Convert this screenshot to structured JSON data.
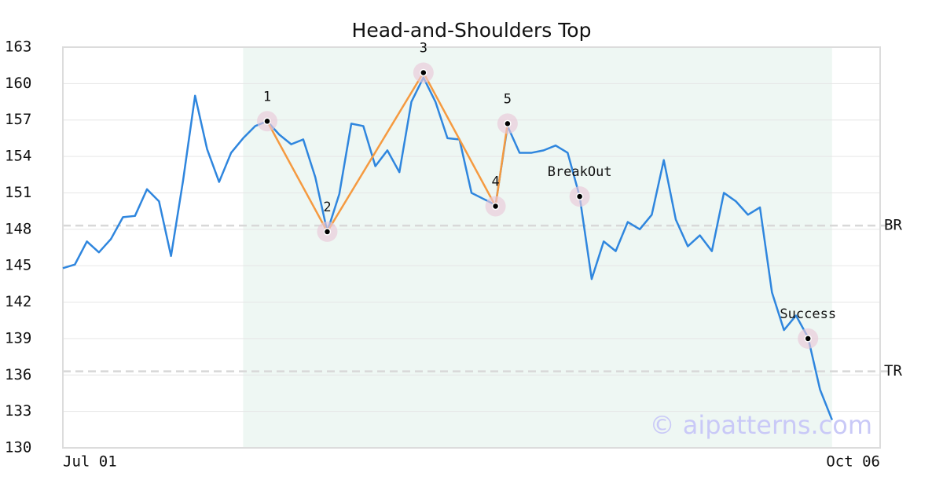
{
  "chart_data": {
    "type": "line",
    "title": "Head-and-Shoulders Top",
    "categories": [
      "Jul 01",
      null,
      null,
      null,
      null,
      null,
      null,
      null,
      null,
      null,
      null,
      null,
      null,
      null,
      null,
      null,
      null,
      null,
      null,
      null,
      null,
      null,
      null,
      null,
      null,
      null,
      null,
      null,
      null,
      null,
      null,
      null,
      null,
      null,
      null,
      null,
      null,
      null,
      null,
      null,
      null,
      null,
      null,
      null,
      null,
      null,
      null,
      null,
      null,
      null,
      null,
      null,
      null,
      null,
      null,
      null,
      null,
      null,
      null,
      null,
      null,
      null,
      null,
      null,
      null,
      null,
      null,
      null,
      "Oct 06"
    ],
    "series": [
      {
        "color": "#2f86de",
        "values": [
          144.8,
          145.1,
          147.0,
          146.1,
          147.2,
          149.0,
          149.1,
          151.3,
          150.3,
          145.8,
          152.0,
          159.0,
          154.6,
          151.9,
          154.3,
          155.5,
          156.5,
          156.9,
          155.8,
          155.0,
          155.4,
          152.3,
          147.8,
          150.9,
          156.7,
          156.5,
          153.2,
          154.5,
          152.7,
          158.5,
          160.5,
          158.5,
          155.5,
          155.4,
          151.0,
          150.5,
          150.0,
          156.5,
          154.3,
          154.3,
          154.5,
          154.9,
          154.3,
          150.7,
          143.9,
          147.0,
          146.2,
          148.6,
          148.0,
          149.2,
          153.7,
          148.8,
          146.6,
          147.5,
          146.2,
          151.0,
          150.3,
          149.2,
          149.8,
          142.8,
          139.7,
          140.9,
          139.1,
          134.8,
          132.3,
          null,
          null,
          null,
          null
        ]
      }
    ],
    "pattern_color": "#f59a40",
    "shaded_range": [
      15,
      64
    ],
    "pattern_points": [
      {
        "label": "1",
        "index": 17,
        "value": 156.9
      },
      {
        "label": "2",
        "index": 22,
        "value": 147.8
      },
      {
        "label": "3",
        "index": 30,
        "value": 160.9
      },
      {
        "label": "4",
        "index": 36,
        "value": 149.9
      },
      {
        "label": "5",
        "index": 37,
        "value": 156.7
      },
      {
        "label": "BreakOut",
        "index": 43,
        "value": 150.7
      },
      {
        "label": "Success",
        "index": 62,
        "value": 139.0
      }
    ],
    "pattern_line_points": 5,
    "reference_lines": [
      {
        "label": "BR",
        "value": 148.3
      },
      {
        "label": "TR",
        "value": 136.3
      }
    ],
    "ylim": [
      130,
      163
    ],
    "yticks": [
      130,
      133,
      136,
      139,
      142,
      145,
      148,
      151,
      154,
      157,
      160,
      163
    ],
    "grid": true,
    "watermark": "© aipatterns.com"
  }
}
